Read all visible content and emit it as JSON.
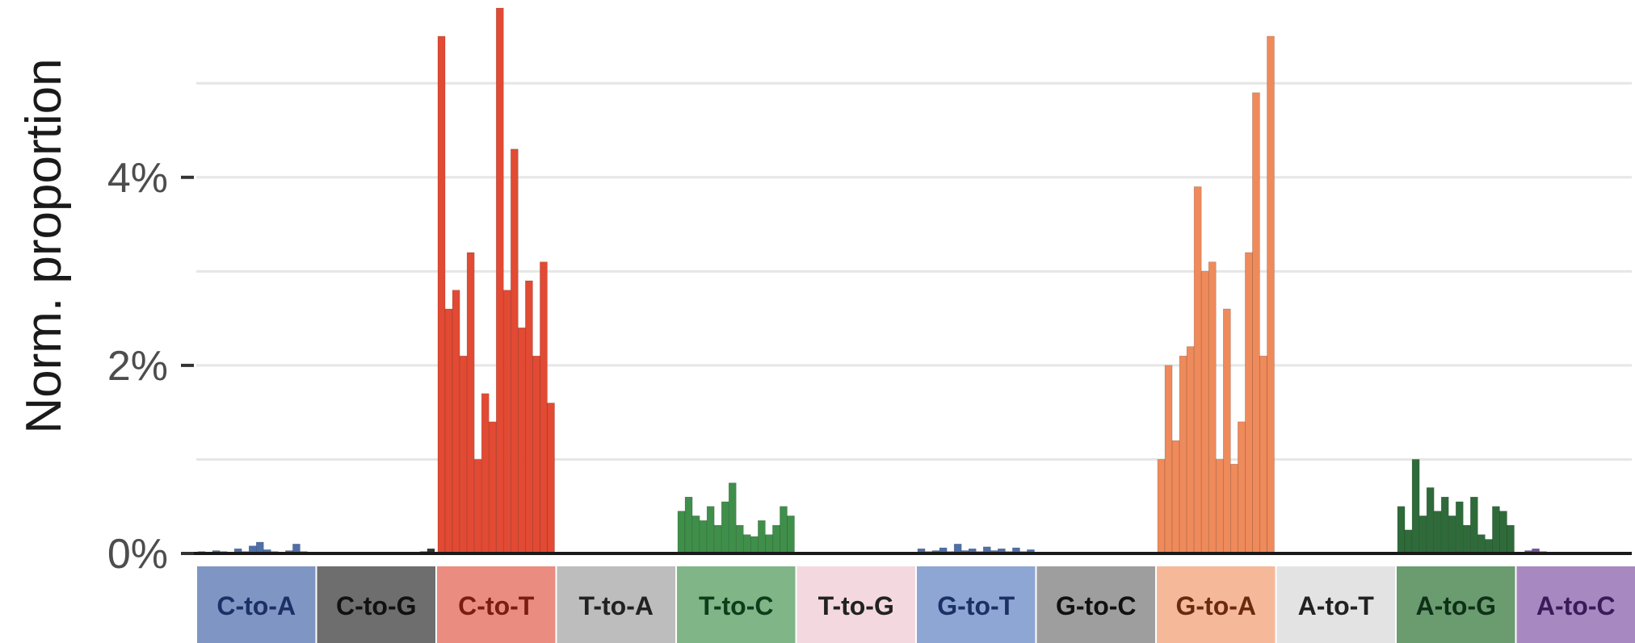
{
  "chart_data": {
    "type": "bar",
    "ylabel": "Norm. proportion",
    "xlabel": "",
    "title": "",
    "ylim": [
      0,
      5.8
    ],
    "y_ticks": [
      {
        "value": 0,
        "label": "0%"
      },
      {
        "value": 2,
        "label": "2%"
      },
      {
        "value": 4,
        "label": "4%"
      }
    ],
    "grid": "horizontal",
    "facets": [
      {
        "name": "C-to-A",
        "color": "#4f6fa8",
        "strip": "#7f96c4",
        "text": "#1d2f66",
        "values": [
          0.02,
          0.01,
          0.03,
          0.02,
          0.01,
          0.05,
          0.02,
          0.08,
          0.12,
          0.04,
          0.02,
          0.01,
          0.03,
          0.1,
          0.02,
          0.01
        ]
      },
      {
        "name": "C-to-G",
        "color": "#333333",
        "strip": "#6e6e6e",
        "text": "#111111",
        "values": [
          0.01,
          0.0,
          0.01,
          0.01,
          0.0,
          0.01,
          0.0,
          0.01,
          0.0,
          0.01,
          0.01,
          0.0,
          0.01,
          0.0,
          0.02,
          0.05
        ]
      },
      {
        "name": "C-to-T",
        "color": "#e24a33",
        "strip": "#eb8c80",
        "text": "#7a1d12",
        "values": [
          5.5,
          2.6,
          2.8,
          2.1,
          3.2,
          1.0,
          1.7,
          1.4,
          5.8,
          2.8,
          4.3,
          2.4,
          2.9,
          2.1,
          3.1,
          1.6
        ]
      },
      {
        "name": "T-to-A",
        "color": "#8c8c8c",
        "strip": "#bdbdbd",
        "text": "#222222",
        "values": [
          0.0,
          0.0,
          0.01,
          0.0,
          0.0,
          0.0,
          0.01,
          0.0,
          0.0,
          0.0,
          0.0,
          0.01,
          0.0,
          0.0,
          0.0,
          0.0
        ]
      },
      {
        "name": "T-to-C",
        "color": "#3f8f4a",
        "strip": "#7fb587",
        "text": "#0f3d1a",
        "values": [
          0.45,
          0.6,
          0.4,
          0.35,
          0.5,
          0.3,
          0.55,
          0.75,
          0.3,
          0.2,
          0.18,
          0.35,
          0.2,
          0.3,
          0.5,
          0.4
        ]
      },
      {
        "name": "T-to-G",
        "color": "#e8b8c4",
        "strip": "#f3d9df",
        "text": "#222222",
        "values": [
          0.0,
          0.0,
          0.0,
          0.0,
          0.0,
          0.0,
          0.0,
          0.0,
          0.0,
          0.0,
          0.0,
          0.0,
          0.0,
          0.0,
          0.0,
          0.0
        ]
      },
      {
        "name": "G-to-T",
        "color": "#4f6fa8",
        "strip": "#8ea6d4",
        "text": "#1d2f66",
        "values": [
          0.05,
          0.02,
          0.03,
          0.06,
          0.02,
          0.1,
          0.03,
          0.05,
          0.02,
          0.07,
          0.03,
          0.05,
          0.02,
          0.06,
          0.02,
          0.04
        ]
      },
      {
        "name": "G-to-C",
        "color": "#555555",
        "strip": "#9e9e9e",
        "text": "#111111",
        "values": [
          0.01,
          0.0,
          0.01,
          0.0,
          0.0,
          0.0,
          0.01,
          0.0,
          0.0,
          0.0,
          0.01,
          0.0,
          0.0,
          0.0,
          0.0,
          0.0
        ]
      },
      {
        "name": "G-to-A",
        "color": "#ef8a5b",
        "strip": "#f5b99a",
        "text": "#6b2a10",
        "values": [
          1.0,
          2.0,
          1.2,
          2.1,
          2.2,
          3.9,
          3.0,
          3.1,
          1.0,
          2.6,
          0.95,
          1.4,
          3.2,
          4.9,
          2.1,
          5.5
        ]
      },
      {
        "name": "A-to-T",
        "color": "#c8c8c8",
        "strip": "#e3e3e3",
        "text": "#222222",
        "values": [
          0.0,
          0.0,
          0.0,
          0.0,
          0.0,
          0.0,
          0.0,
          0.0,
          0.0,
          0.0,
          0.0,
          0.0,
          0.0,
          0.0,
          0.0,
          0.0
        ]
      },
      {
        "name": "A-to-G",
        "color": "#2f6b3a",
        "strip": "#6a9c70",
        "text": "#0f3018",
        "values": [
          0.5,
          0.25,
          1.0,
          0.4,
          0.7,
          0.45,
          0.6,
          0.4,
          0.55,
          0.3,
          0.6,
          0.2,
          0.15,
          0.5,
          0.45,
          0.3
        ]
      },
      {
        "name": "A-to-C",
        "color": "#7a4f9a",
        "strip": "#a888c0",
        "text": "#3a1a58",
        "values": [
          0.01,
          0.03,
          0.05,
          0.02,
          0.01,
          0.0,
          0.01,
          0.0,
          0.0,
          0.01,
          0.0,
          0.0,
          0.0,
          0.0,
          0.0,
          0.0
        ]
      }
    ]
  }
}
